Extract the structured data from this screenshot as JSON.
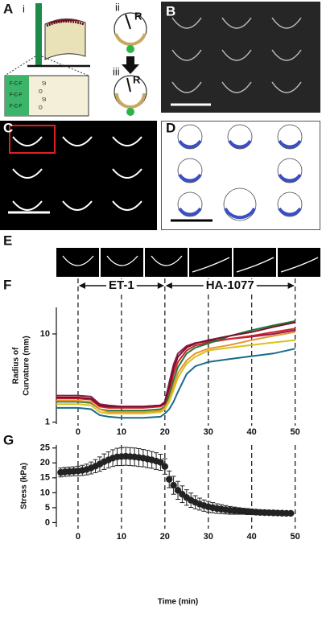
{
  "figure": {
    "A": {
      "label": "A",
      "sublabels": [
        "i",
        "ii",
        "iii"
      ],
      "symbol": "R",
      "chemistry": [
        "F-C-F",
        "F-C-F",
        "F-C-F",
        "Si",
        "O",
        "Si",
        "O"
      ]
    },
    "B": {
      "label": "B"
    },
    "C": {
      "label": "C"
    },
    "D": {
      "label": "D"
    },
    "E": {
      "label": "E"
    }
  },
  "chart_data": [
    {
      "type": "line",
      "panel": "F",
      "ylabel": [
        "Radius of",
        "Curvature (mm)"
      ],
      "x": [
        -5,
        0,
        3,
        5,
        7,
        10,
        15,
        19,
        20,
        21,
        22,
        23,
        25,
        27,
        30,
        35,
        40,
        45,
        50
      ],
      "series": [
        {
          "color": "#8b1a4a",
          "values": [
            2.0,
            2.0,
            1.95,
            1.6,
            1.55,
            1.5,
            1.5,
            1.55,
            1.7,
            2.8,
            4.5,
            6.0,
            7.3,
            7.9,
            8.3,
            8.8,
            9.3,
            10.0,
            11.0
          ]
        },
        {
          "color": "#d4202a",
          "values": [
            1.85,
            1.85,
            1.8,
            1.5,
            1.45,
            1.45,
            1.45,
            1.5,
            1.6,
            2.3,
            3.5,
            4.8,
            6.5,
            7.4,
            8.0,
            8.8,
            9.5,
            10.5,
            11.5
          ]
        },
        {
          "color": "#1e7a3a",
          "values": [
            1.7,
            1.7,
            1.65,
            1.4,
            1.35,
            1.35,
            1.35,
            1.4,
            1.5,
            2.0,
            3.0,
            4.2,
            6.0,
            7.0,
            7.8,
            9.5,
            11.0,
            12.5,
            14.0
          ]
        },
        {
          "color": "#e8942a",
          "values": [
            1.75,
            1.75,
            1.7,
            1.4,
            1.3,
            1.3,
            1.3,
            1.35,
            1.45,
            1.8,
            2.6,
            3.6,
            5.0,
            6.0,
            6.8,
            7.5,
            8.5,
            9.5,
            10.5
          ]
        },
        {
          "color": "#d8c21e",
          "values": [
            1.6,
            1.6,
            1.55,
            1.3,
            1.25,
            1.25,
            1.25,
            1.3,
            1.4,
            1.7,
            2.3,
            3.2,
            4.6,
            5.5,
            6.5,
            7.0,
            7.5,
            8.0,
            8.5
          ]
        },
        {
          "color": "#1a6a8a",
          "values": [
            1.45,
            1.45,
            1.4,
            1.2,
            1.15,
            1.12,
            1.12,
            1.15,
            1.25,
            1.4,
            1.7,
            2.2,
            3.5,
            4.3,
            4.8,
            5.2,
            5.6,
            6.0,
            6.8
          ]
        },
        {
          "color": "#7a0f2a",
          "values": [
            1.9,
            1.9,
            1.85,
            1.55,
            1.5,
            1.5,
            1.5,
            1.55,
            1.65,
            2.5,
            4.0,
            5.5,
            7.0,
            7.8,
            8.5,
            9.5,
            10.5,
            12.0,
            13.5
          ]
        }
      ],
      "xlim": [
        -5,
        51
      ],
      "xticks": [
        0,
        10,
        20,
        30,
        40,
        50
      ],
      "xgrid": "dashed",
      "ylim": [
        0.95,
        20
      ],
      "yticks": [
        1,
        10
      ],
      "yscale": "log",
      "annotations": [
        {
          "text": "ET-1",
          "start": 0,
          "end": 20
        },
        {
          "text": "HA-1077",
          "start": 20,
          "end": 50
        }
      ]
    },
    {
      "type": "scatter",
      "panel": "G",
      "ylabel": [
        "Stress (kPa)"
      ],
      "xlabel": "Time (min)",
      "color": "#222222",
      "x": [
        -4,
        -3,
        -2,
        -1,
        0,
        1,
        2,
        3,
        4,
        5,
        6,
        7,
        8,
        9,
        10,
        11,
        12,
        13,
        14,
        15,
        16,
        17,
        18,
        19,
        20,
        21,
        22,
        23,
        24,
        25,
        26,
        27,
        28,
        29,
        30,
        31,
        32,
        33,
        34,
        35,
        36,
        37,
        38,
        39,
        40,
        41,
        42,
        43,
        44,
        45,
        46,
        47,
        48,
        49
      ],
      "values": [
        16.8,
        17.0,
        17.1,
        17.2,
        17.3,
        17.5,
        17.8,
        18.3,
        18.9,
        19.6,
        20.4,
        21.0,
        21.6,
        22.0,
        22.1,
        22.2,
        22.1,
        22.0,
        21.8,
        21.6,
        21.3,
        21.0,
        20.6,
        20.2,
        18.8,
        14.5,
        12.5,
        10.8,
        9.5,
        8.4,
        7.5,
        6.8,
        6.2,
        5.7,
        5.3,
        5.0,
        4.7,
        4.5,
        4.3,
        4.1,
        4.0,
        3.9,
        3.8,
        3.7,
        3.6,
        3.5,
        3.4,
        3.35,
        3.3,
        3.25,
        3.2,
        3.15,
        3.1,
        3.1
      ],
      "errors": [
        1.5,
        1.5,
        1.5,
        1.5,
        1.6,
        1.7,
        1.8,
        2.0,
        2.2,
        2.4,
        2.6,
        2.7,
        2.8,
        2.9,
        3.0,
        3.0,
        3.0,
        3.0,
        3.0,
        2.9,
        2.9,
        2.8,
        2.8,
        2.7,
        2.6,
        2.8,
        3.0,
        3.0,
        2.8,
        2.6,
        2.4,
        2.2,
        2.0,
        1.9,
        1.8,
        1.7,
        1.6,
        1.5,
        1.4,
        1.3,
        1.2,
        1.1,
        1.0,
        1.0,
        0.9,
        0.9,
        0.8,
        0.8,
        0.7,
        0.7,
        0.7,
        0.6,
        0.6,
        0.6
      ],
      "xlim": [
        -5,
        51
      ],
      "xticks": [
        0,
        10,
        20,
        30,
        40,
        50
      ],
      "xgrid": "dashed",
      "ylim": [
        -1.5,
        26
      ],
      "yticks": [
        0,
        5,
        10,
        15,
        20,
        25
      ]
    }
  ]
}
